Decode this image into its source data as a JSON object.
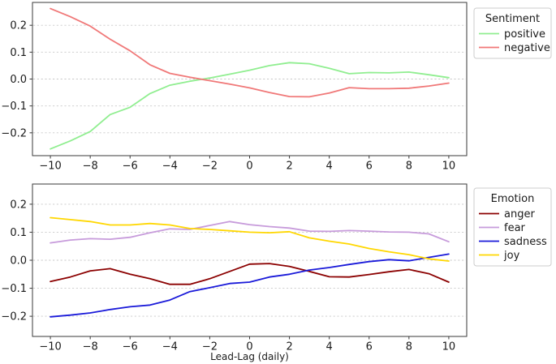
{
  "figure": {
    "background": "#ffffff",
    "grid_color": "#c9c9c9",
    "spine_color": "#3a3a3a",
    "text_color": "#1a1a1a"
  },
  "chart_data": [
    {
      "type": "line",
      "title": "",
      "legend_title": "Sentiment",
      "legend_position": "outside-upper-right",
      "grid": "horizontal-dashed",
      "xlabel": "",
      "ylabel": "",
      "x": [
        -10,
        -9,
        -8,
        -7,
        -6,
        -5,
        -4,
        -3,
        -2,
        -1,
        0,
        1,
        2,
        3,
        4,
        5,
        6,
        7,
        8,
        9,
        10
      ],
      "x_ticks": [
        -10,
        -8,
        -6,
        -4,
        -2,
        0,
        2,
        4,
        6,
        8,
        10
      ],
      "y_ticks": [
        0.2,
        0.1,
        0.0,
        -0.1,
        -0.2
      ],
      "ylim": [
        -0.285,
        0.285
      ],
      "xlim": [
        -10.9,
        10.9
      ],
      "series": [
        {
          "name": "positive",
          "color": "#90EE90",
          "values": [
            -0.26,
            -0.23,
            -0.195,
            -0.132,
            -0.105,
            -0.054,
            -0.023,
            -0.008,
            0.004,
            0.018,
            0.033,
            0.05,
            0.061,
            0.057,
            0.04,
            0.02,
            0.024,
            0.023,
            0.026,
            0.016,
            0.005
          ]
        },
        {
          "name": "negative",
          "color": "#F07878",
          "values": [
            0.262,
            0.232,
            0.197,
            0.148,
            0.105,
            0.053,
            0.021,
            0.007,
            -0.006,
            -0.019,
            -0.033,
            -0.05,
            -0.065,
            -0.066,
            -0.052,
            -0.032,
            -0.036,
            -0.036,
            -0.034,
            -0.026,
            -0.015
          ]
        }
      ]
    },
    {
      "type": "line",
      "title": "",
      "legend_title": "Emotion",
      "legend_position": "outside-upper-right",
      "grid": "horizontal-dashed",
      "xlabel": "Lead-Lag (daily)",
      "ylabel": "",
      "x": [
        -10,
        -9,
        -8,
        -7,
        -6,
        -5,
        -4,
        -3,
        -2,
        -1,
        0,
        1,
        2,
        3,
        4,
        5,
        6,
        7,
        8,
        9,
        10
      ],
      "x_ticks": [
        -10,
        -8,
        -6,
        -4,
        -2,
        0,
        2,
        4,
        6,
        8,
        10
      ],
      "y_ticks": [
        0.2,
        0.1,
        0.0,
        -0.1,
        -0.2
      ],
      "ylim": [
        -0.272,
        0.272
      ],
      "xlim": [
        -10.9,
        10.9
      ],
      "series": [
        {
          "name": "anger",
          "color": "#8B0000",
          "values": [
            -0.076,
            -0.06,
            -0.038,
            -0.03,
            -0.05,
            -0.066,
            -0.086,
            -0.086,
            -0.066,
            -0.04,
            -0.014,
            -0.012,
            -0.022,
            -0.04,
            -0.059,
            -0.06,
            -0.051,
            -0.041,
            -0.033,
            -0.048,
            -0.078
          ]
        },
        {
          "name": "fear",
          "color": "#C79BDB",
          "values": [
            0.062,
            0.072,
            0.077,
            0.075,
            0.082,
            0.098,
            0.112,
            0.11,
            0.124,
            0.138,
            0.127,
            0.12,
            0.115,
            0.104,
            0.103,
            0.106,
            0.104,
            0.101,
            0.1,
            0.094,
            0.066
          ]
        },
        {
          "name": "sadness",
          "color": "#1A1AD9",
          "values": [
            -0.202,
            -0.196,
            -0.188,
            -0.176,
            -0.166,
            -0.16,
            -0.142,
            -0.112,
            -0.098,
            -0.083,
            -0.078,
            -0.06,
            -0.05,
            -0.035,
            -0.026,
            -0.015,
            -0.005,
            0.002,
            -0.002,
            0.01,
            0.022
          ]
        },
        {
          "name": "joy",
          "color": "#FFD700",
          "values": [
            0.152,
            0.145,
            0.138,
            0.126,
            0.126,
            0.131,
            0.126,
            0.113,
            0.11,
            0.105,
            0.1,
            0.098,
            0.102,
            0.08,
            0.068,
            0.058,
            0.042,
            0.03,
            0.02,
            0.005,
            -0.003
          ]
        }
      ]
    }
  ]
}
